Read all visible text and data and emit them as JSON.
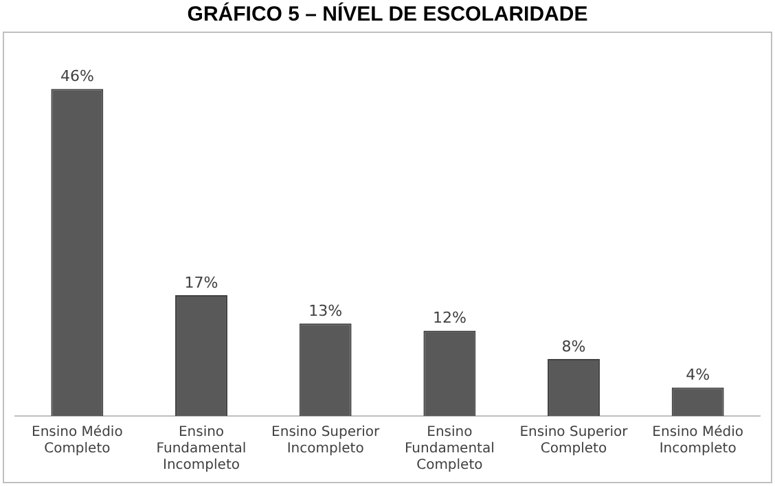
{
  "chart_data": {
    "type": "bar",
    "title": "GRÁFICO 5 – NÍVEL DE ESCOLARIDADE",
    "categories": [
      "Ensino Médio Completo",
      "Ensino Fundamental Incompleto",
      "Ensino Superior Incompleto",
      "Ensino Fundamental Completo",
      "Ensino Superior Completo",
      "Ensino Médio Incompleto"
    ],
    "values": [
      46,
      17,
      13,
      12,
      8,
      4
    ],
    "value_labels": [
      "46%",
      "17%",
      "13%",
      "12%",
      "8%",
      "4%"
    ],
    "color": "#595959",
    "grid": false,
    "legend": false
  }
}
